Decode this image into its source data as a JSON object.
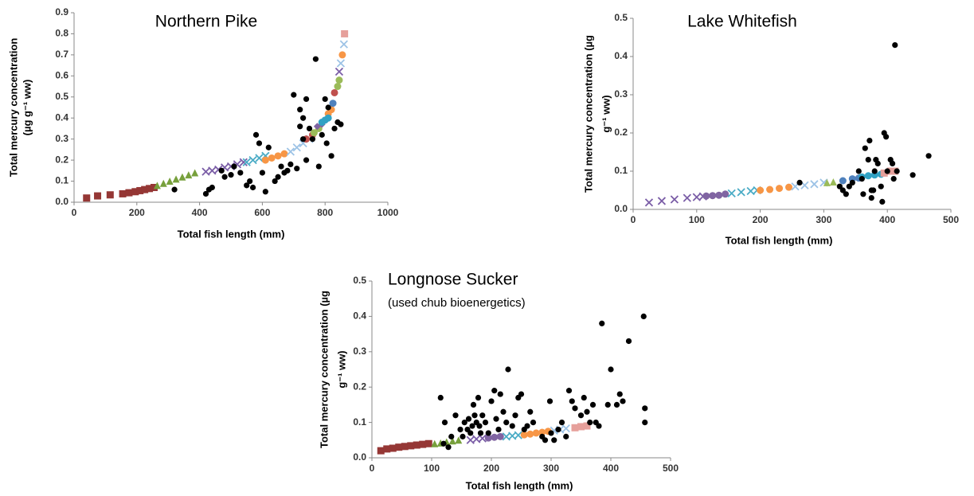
{
  "chart_data": [
    {
      "type": "scatter",
      "title": "Northern Pike",
      "xlabel": "Total fish length (mm)",
      "ylabel": [
        "Total mercury concentration",
        "(µg g⁻¹ ww)"
      ],
      "xlim": [
        0,
        1000
      ],
      "xticks": [
        0,
        200,
        400,
        600,
        800,
        1000
      ],
      "ylim": [
        0,
        0.9
      ],
      "yticks": [
        {
          "value": 0,
          "label": "0.0"
        },
        0.1,
        0.2,
        0.3,
        0.4,
        0.5,
        0.6,
        0.7,
        0.8,
        0.9
      ],
      "series": [
        {
          "color": "#953735",
          "marker": "square",
          "x": [
            40,
            75,
            115,
            155,
            175,
            195,
            210,
            225,
            240,
            255
          ],
          "values": [
            0.02,
            0.03,
            0.035,
            0.04,
            0.045,
            0.05,
            0.055,
            0.06,
            0.065,
            0.07
          ]
        },
        {
          "color": "#77a03c",
          "marker": "triangle",
          "x": [
            265,
            285,
            305,
            325,
            345,
            365,
            385
          ],
          "values": [
            0.08,
            0.09,
            0.1,
            0.11,
            0.12,
            0.13,
            0.14
          ]
        },
        {
          "color": "#7b5ea7",
          "marker": "cross",
          "x": [
            420,
            440,
            460,
            480,
            500,
            520,
            540,
            845
          ],
          "values": [
            0.145,
            0.15,
            0.155,
            0.165,
            0.17,
            0.18,
            0.19,
            0.62
          ]
        },
        {
          "color": "#4bacc6",
          "marker": "cross",
          "x": [
            550,
            570,
            590,
            610
          ],
          "values": [
            0.19,
            0.2,
            0.21,
            0.22
          ]
        },
        {
          "color": "#f79646",
          "marker": "circle",
          "x": [
            610,
            630,
            650,
            670,
            810,
            820,
            855
          ],
          "values": [
            0.2,
            0.21,
            0.22,
            0.23,
            0.42,
            0.44,
            0.7
          ]
        },
        {
          "color": "#9dc3e6",
          "marker": "cross",
          "x": [
            690,
            710,
            730,
            750,
            850,
            860
          ],
          "values": [
            0.24,
            0.26,
            0.28,
            0.3,
            0.66,
            0.75
          ]
        },
        {
          "color": "#c0504d",
          "marker": "circle",
          "x": [
            740,
            760,
            830
          ],
          "values": [
            0.3,
            0.32,
            0.52
          ]
        },
        {
          "color": "#9bbb59",
          "marker": "circle",
          "x": [
            765,
            780,
            840,
            845
          ],
          "values": [
            0.33,
            0.35,
            0.55,
            0.58
          ]
        },
        {
          "color": "#8064a2",
          "marker": "diamond",
          "x": [
            775,
            790
          ],
          "values": [
            0.36,
            0.37
          ]
        },
        {
          "color": "#31a2c4",
          "marker": "circle",
          "x": [
            790,
            800,
            810
          ],
          "values": [
            0.38,
            0.39,
            0.4
          ]
        },
        {
          "color": "#4f81bd",
          "marker": "circle",
          "x": [
            825
          ],
          "values": [
            0.47
          ]
        },
        {
          "color": "#e6a09b",
          "marker": "square",
          "x": [
            862
          ],
          "values": [
            0.8
          ]
        },
        {
          "color": "#000000",
          "marker": "circle",
          "x": [
            320,
            420,
            430,
            440,
            470,
            480,
            500,
            510,
            530,
            550,
            560,
            570,
            580,
            590,
            600,
            610,
            620,
            640,
            650,
            660,
            670,
            680,
            690,
            700,
            710,
            720,
            730,
            740,
            740,
            750,
            760,
            770,
            780,
            790,
            800,
            805,
            810,
            820,
            830,
            840,
            850,
            720,
            730
          ],
          "values": [
            0.06,
            0.04,
            0.06,
            0.07,
            0.15,
            0.12,
            0.13,
            0.17,
            0.14,
            0.08,
            0.1,
            0.07,
            0.32,
            0.28,
            0.14,
            0.05,
            0.26,
            0.1,
            0.12,
            0.17,
            0.14,
            0.15,
            0.18,
            0.51,
            0.16,
            0.44,
            0.4,
            0.49,
            0.2,
            0.35,
            0.3,
            0.68,
            0.17,
            0.32,
            0.49,
            0.28,
            0.45,
            0.22,
            0.35,
            0.38,
            0.37,
            0.36,
            0.3
          ]
        }
      ]
    },
    {
      "type": "scatter",
      "title": "Lake Whitefish",
      "xlabel": "Total fish length (mm)",
      "ylabel": [
        "Total mercury concentration (µg",
        "g⁻¹ ww)"
      ],
      "xlim": [
        0,
        500
      ],
      "xticks": [
        0,
        100,
        200,
        300,
        400,
        500
      ],
      "ylim": [
        0,
        0.5
      ],
      "yticks": [
        {
          "value": 0,
          "label": "0.0"
        },
        0.1,
        0.2,
        0.3,
        0.4,
        0.5
      ],
      "series": [
        {
          "color": "#7b5ea7",
          "marker": "cross",
          "x": [
            25,
            45,
            65,
            85,
            100,
            110
          ],
          "values": [
            0.018,
            0.022,
            0.026,
            0.03,
            0.032,
            0.034
          ]
        },
        {
          "color": "#8064a2",
          "marker": "circle",
          "x": [
            115,
            125,
            135,
            145
          ],
          "values": [
            0.035,
            0.036,
            0.037,
            0.04
          ]
        },
        {
          "color": "#4bacc6",
          "marker": "cross",
          "x": [
            155,
            170,
            185,
            195
          ],
          "values": [
            0.042,
            0.045,
            0.048,
            0.05
          ]
        },
        {
          "color": "#f79646",
          "marker": "circle",
          "x": [
            200,
            215,
            230,
            245
          ],
          "values": [
            0.05,
            0.052,
            0.055,
            0.058
          ]
        },
        {
          "color": "#9dc3e6",
          "marker": "cross",
          "x": [
            255,
            270,
            285,
            300
          ],
          "values": [
            0.06,
            0.063,
            0.066,
            0.07
          ]
        },
        {
          "color": "#9bbb59",
          "marker": "triangle",
          "x": [
            305,
            315
          ],
          "values": [
            0.07,
            0.072
          ]
        },
        {
          "color": "#4f81bd",
          "marker": "circle",
          "x": [
            330,
            345,
            355
          ],
          "values": [
            0.075,
            0.08,
            0.082
          ]
        },
        {
          "color": "#31a2c4",
          "marker": "circle",
          "x": [
            360,
            370,
            380,
            390
          ],
          "values": [
            0.085,
            0.088,
            0.09,
            0.092
          ]
        },
        {
          "color": "#e6a09b",
          "marker": "square",
          "x": [
            395,
            405,
            412
          ],
          "values": [
            0.095,
            0.1,
            0.1
          ]
        },
        {
          "color": "#000000",
          "marker": "circle",
          "x": [
            262,
            325,
            330,
            335,
            340,
            345,
            355,
            360,
            362,
            365,
            370,
            372,
            375,
            375,
            378,
            380,
            382,
            385,
            390,
            392,
            395,
            398,
            400,
            405,
            408,
            410,
            412,
            415,
            440,
            465
          ],
          "values": [
            0.07,
            0.06,
            0.05,
            0.04,
            0.06,
            0.07,
            0.1,
            0.08,
            0.04,
            0.16,
            0.13,
            0.18,
            0.05,
            0.03,
            0.05,
            0.1,
            0.13,
            0.12,
            0.06,
            0.02,
            0.2,
            0.19,
            0.1,
            0.13,
            0.12,
            0.08,
            0.43,
            0.1,
            0.09,
            0.14
          ]
        }
      ]
    },
    {
      "type": "scatter",
      "title": "Longnose Sucker",
      "subtitle": "(used chub bioenergetics)",
      "xlabel": "Total fish length (mm)",
      "ylabel": [
        "Total mercury concentration (µg",
        "g⁻¹ ww)"
      ],
      "xlim": [
        0,
        500
      ],
      "xticks": [
        0,
        100,
        200,
        300,
        400,
        500
      ],
      "ylim": [
        0,
        0.5
      ],
      "yticks": [
        {
          "value": 0,
          "label": "0.0"
        },
        0.1,
        0.2,
        0.3,
        0.4,
        0.5
      ],
      "series": [
        {
          "color": "#953735",
          "marker": "square",
          "x": [
            15,
            25,
            35,
            45,
            55,
            65,
            75,
            85,
            95
          ],
          "values": [
            0.02,
            0.025,
            0.027,
            0.03,
            0.032,
            0.034,
            0.036,
            0.038,
            0.04
          ]
        },
        {
          "color": "#77a03c",
          "marker": "triangle",
          "x": [
            105,
            115,
            125,
            135,
            145
          ],
          "values": [
            0.04,
            0.042,
            0.045,
            0.048,
            0.05
          ]
        },
        {
          "color": "#7b5ea7",
          "marker": "cross",
          "x": [
            165,
            175,
            185
          ],
          "values": [
            0.05,
            0.053,
            0.055
          ]
        },
        {
          "color": "#8064a2",
          "marker": "circle",
          "x": [
            195,
            205,
            215
          ],
          "values": [
            0.056,
            0.058,
            0.06
          ]
        },
        {
          "color": "#4bacc6",
          "marker": "cross",
          "x": [
            225,
            235,
            245
          ],
          "values": [
            0.06,
            0.062,
            0.064
          ]
        },
        {
          "color": "#f79646",
          "marker": "circle",
          "x": [
            255,
            265,
            275,
            285,
            295
          ],
          "values": [
            0.065,
            0.067,
            0.07,
            0.072,
            0.075
          ]
        },
        {
          "color": "#9dc3e6",
          "marker": "cross",
          "x": [
            305,
            315,
            325
          ],
          "values": [
            0.077,
            0.08,
            0.083
          ]
        },
        {
          "color": "#e6a09b",
          "marker": "square",
          "x": [
            340,
            350,
            360
          ],
          "values": [
            0.085,
            0.088,
            0.09
          ]
        },
        {
          "color": "#000000",
          "marker": "circle",
          "x": [
            115,
            120,
            122,
            128,
            133,
            140,
            148,
            152,
            155,
            160,
            162,
            165,
            168,
            170,
            172,
            175,
            178,
            180,
            182,
            185,
            190,
            195,
            200,
            205,
            208,
            212,
            215,
            220,
            225,
            228,
            235,
            240,
            245,
            250,
            255,
            260,
            265,
            270,
            285,
            290,
            298,
            300,
            305,
            312,
            318,
            325,
            330,
            335,
            340,
            350,
            355,
            360,
            365,
            370,
            375,
            380,
            385,
            395,
            400,
            410,
            415,
            420,
            430,
            455,
            457,
            457
          ],
          "values": [
            0.17,
            0.04,
            0.1,
            0.03,
            0.06,
            0.12,
            0.08,
            0.06,
            0.1,
            0.08,
            0.11,
            0.07,
            0.09,
            0.15,
            0.12,
            0.1,
            0.17,
            0.09,
            0.07,
            0.12,
            0.1,
            0.07,
            0.16,
            0.19,
            0.11,
            0.08,
            0.18,
            0.13,
            0.1,
            0.25,
            0.09,
            0.12,
            0.17,
            0.18,
            0.08,
            0.09,
            0.13,
            0.1,
            0.06,
            0.05,
            0.16,
            0.07,
            0.05,
            0.08,
            0.1,
            0.06,
            0.19,
            0.16,
            0.14,
            0.12,
            0.17,
            0.13,
            0.1,
            0.15,
            0.1,
            0.09,
            0.38,
            0.15,
            0.25,
            0.15,
            0.18,
            0.16,
            0.33,
            0.4,
            0.14,
            0.1
          ]
        }
      ]
    }
  ]
}
